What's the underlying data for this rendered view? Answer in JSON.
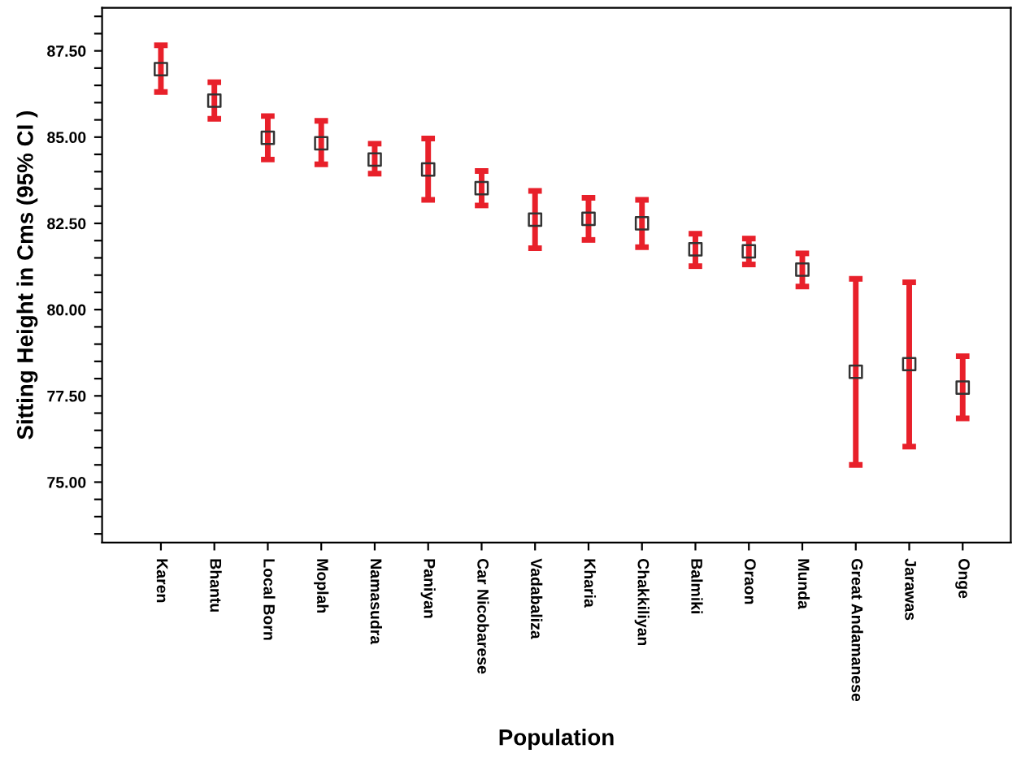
{
  "chart_data": {
    "type": "scatter",
    "xlabel": "Population",
    "ylabel": "Sitting Height in Cms (95% CI )",
    "categories": [
      "Karen",
      "Bhantu",
      "Local Born",
      "Moplah",
      "Namasudra",
      "Paniyan",
      "Car Nicobarese",
      "Vadabaliza",
      "Kharia",
      "Chakkiliyan",
      "Balmiki",
      "Oraon",
      "Munda",
      "Great Andamanese",
      "Jarawas",
      "Onge"
    ],
    "series": [
      {
        "color": "#333333",
        "values": [
          86.97,
          86.06,
          84.98,
          84.82,
          84.35,
          84.06,
          83.52,
          82.61,
          82.63,
          82.5,
          81.75,
          81.69,
          81.16,
          78.2,
          78.42,
          77.74
        ],
        "errors": [
          [
            86.31,
            87.66
          ],
          [
            85.53,
            86.59
          ],
          [
            84.35,
            85.61
          ],
          [
            84.21,
            85.47
          ],
          [
            83.94,
            84.81
          ],
          [
            83.18,
            84.96
          ],
          [
            83.02,
            84.02
          ],
          [
            81.78,
            83.44
          ],
          [
            82.02,
            83.24
          ],
          [
            81.81,
            83.18
          ],
          [
            81.26,
            82.2
          ],
          [
            81.31,
            82.06
          ],
          [
            80.67,
            81.63
          ],
          [
            75.5,
            80.89
          ],
          [
            76.03,
            80.79
          ],
          [
            76.85,
            78.65
          ]
        ]
      }
    ],
    "marker": "square",
    "ylim": [
      73.25,
      88.75
    ],
    "yticks": [
      {
        "value": 73.5,
        "label": null
      },
      {
        "value": 74,
        "label": null
      },
      {
        "value": 74.5,
        "label": null
      },
      {
        "value": 75,
        "label": "75.00"
      },
      {
        "value": 75.5,
        "label": null
      },
      {
        "value": 76,
        "label": null
      },
      {
        "value": 76.5,
        "label": null
      },
      {
        "value": 77,
        "label": null
      },
      {
        "value": 77.5,
        "label": "77.50"
      },
      {
        "value": 78,
        "label": null
      },
      {
        "value": 78.5,
        "label": null
      },
      {
        "value": 79,
        "label": null
      },
      {
        "value": 79.5,
        "label": null
      },
      {
        "value": 80,
        "label": "80.00"
      },
      {
        "value": 80.5,
        "label": null
      },
      {
        "value": 81,
        "label": null
      },
      {
        "value": 81.5,
        "label": null
      },
      {
        "value": 82,
        "label": null
      },
      {
        "value": 82.5,
        "label": "82.50"
      },
      {
        "value": 83,
        "label": null
      },
      {
        "value": 83.5,
        "label": null
      },
      {
        "value": 84,
        "label": null
      },
      {
        "value": 84.5,
        "label": null
      },
      {
        "value": 85,
        "label": "85.00"
      },
      {
        "value": 85.5,
        "label": null
      },
      {
        "value": 86,
        "label": null
      },
      {
        "value": 86.5,
        "label": null
      },
      {
        "value": 87,
        "label": null
      },
      {
        "value": 87.5,
        "label": "87.50"
      },
      {
        "value": 88,
        "label": null
      },
      {
        "value": 88.5,
        "label": null
      }
    ],
    "grid": false
  }
}
